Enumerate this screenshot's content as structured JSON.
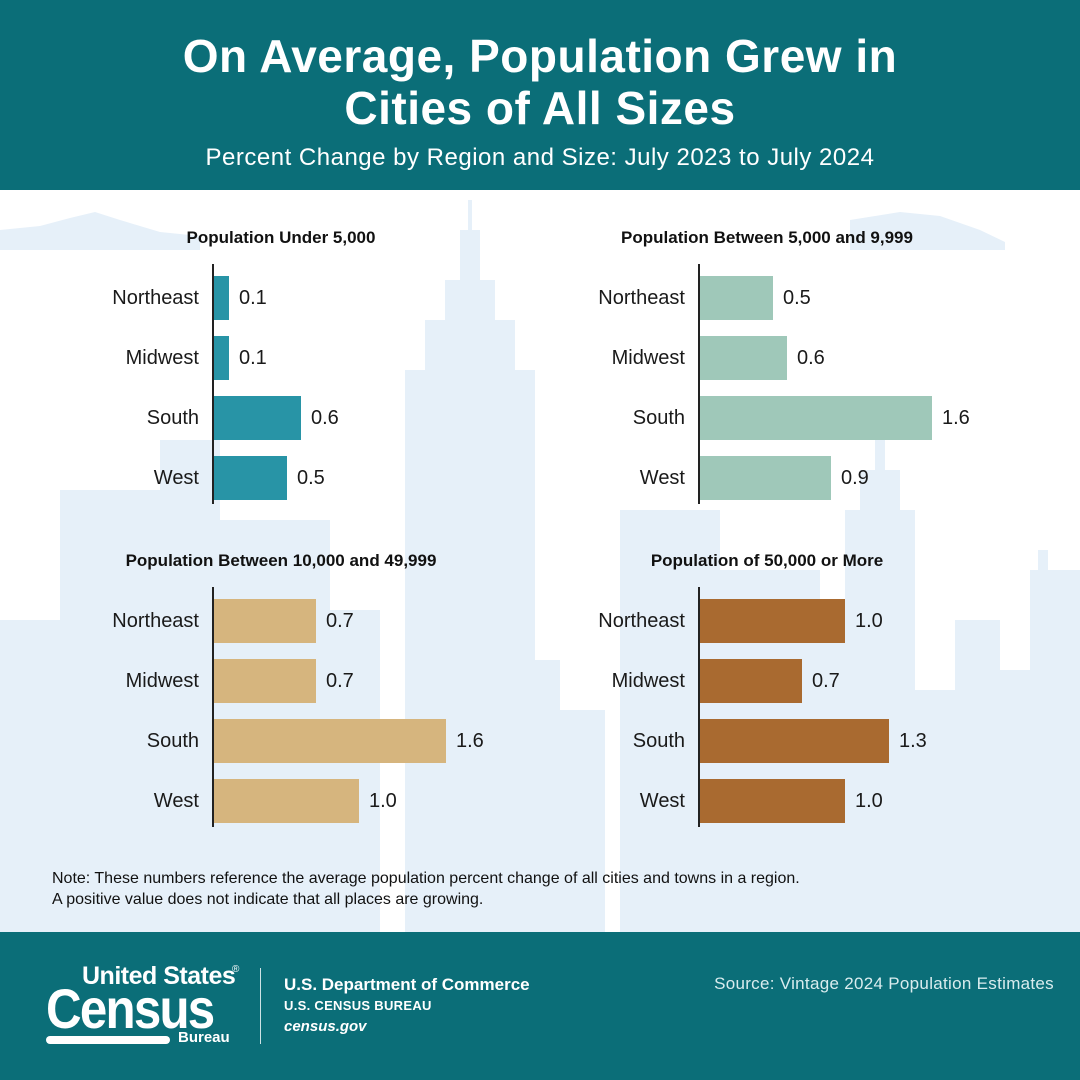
{
  "header": {
    "title_line1": "On Average, Population Grew in",
    "title_line2": "Cities of All Sizes",
    "subtitle": "Percent Change by Region and Size: July 2023 to July 2024"
  },
  "colors": {
    "header_bg": "#0b6e78",
    "chart1_bar": "#2894a6",
    "chart2_bar": "#9fc8b9",
    "chart3_bar": "#d6b57e",
    "chart4_bar": "#a96a30",
    "skyline": "#e6f0f9"
  },
  "chart_data": [
    {
      "type": "bar",
      "orientation": "horizontal",
      "title": "Population Under 5,000",
      "categories": [
        "Northeast",
        "Midwest",
        "South",
        "West"
      ],
      "values": [
        0.1,
        0.1,
        0.6,
        0.5
      ],
      "value_labels": [
        "0.1",
        "0.1",
        "0.6",
        "0.5"
      ],
      "xlim": [
        0,
        1.6
      ]
    },
    {
      "type": "bar",
      "orientation": "horizontal",
      "title": "Population Between 5,000 and 9,999",
      "categories": [
        "Northeast",
        "Midwest",
        "South",
        "West"
      ],
      "values": [
        0.5,
        0.6,
        1.6,
        0.9
      ],
      "value_labels": [
        "0.5",
        "0.6",
        "1.6",
        "0.9"
      ],
      "xlim": [
        0,
        1.6
      ]
    },
    {
      "type": "bar",
      "orientation": "horizontal",
      "title": "Population Between 10,000 and 49,999",
      "categories": [
        "Northeast",
        "Midwest",
        "South",
        "West"
      ],
      "values": [
        0.7,
        0.7,
        1.6,
        1.0
      ],
      "value_labels": [
        "0.7",
        "0.7",
        "1.6",
        "1.0"
      ],
      "xlim": [
        0,
        1.6
      ]
    },
    {
      "type": "bar",
      "orientation": "horizontal",
      "title": "Population of 50,000 or More",
      "categories": [
        "Northeast",
        "Midwest",
        "South",
        "West"
      ],
      "values": [
        1.0,
        0.7,
        1.3,
        1.0
      ],
      "value_labels": [
        "1.0",
        "0.7",
        "1.3",
        "1.0"
      ],
      "xlim": [
        0,
        1.6
      ]
    }
  ],
  "note": {
    "line1": "Note: These numbers reference the average population percent change of all cities and towns in a region.",
    "line2": "A positive value does not indicate that all places are growing."
  },
  "footer": {
    "logo_united_states": "United States",
    "logo_registered": "®",
    "logo_census": "Census",
    "logo_bureau": "Bureau",
    "department": "U.S. Department of Commerce",
    "bureau_name": "U.S. CENSUS BUREAU",
    "website": "census.gov",
    "source": "Source: Vintage 2024 Population Estimates"
  }
}
